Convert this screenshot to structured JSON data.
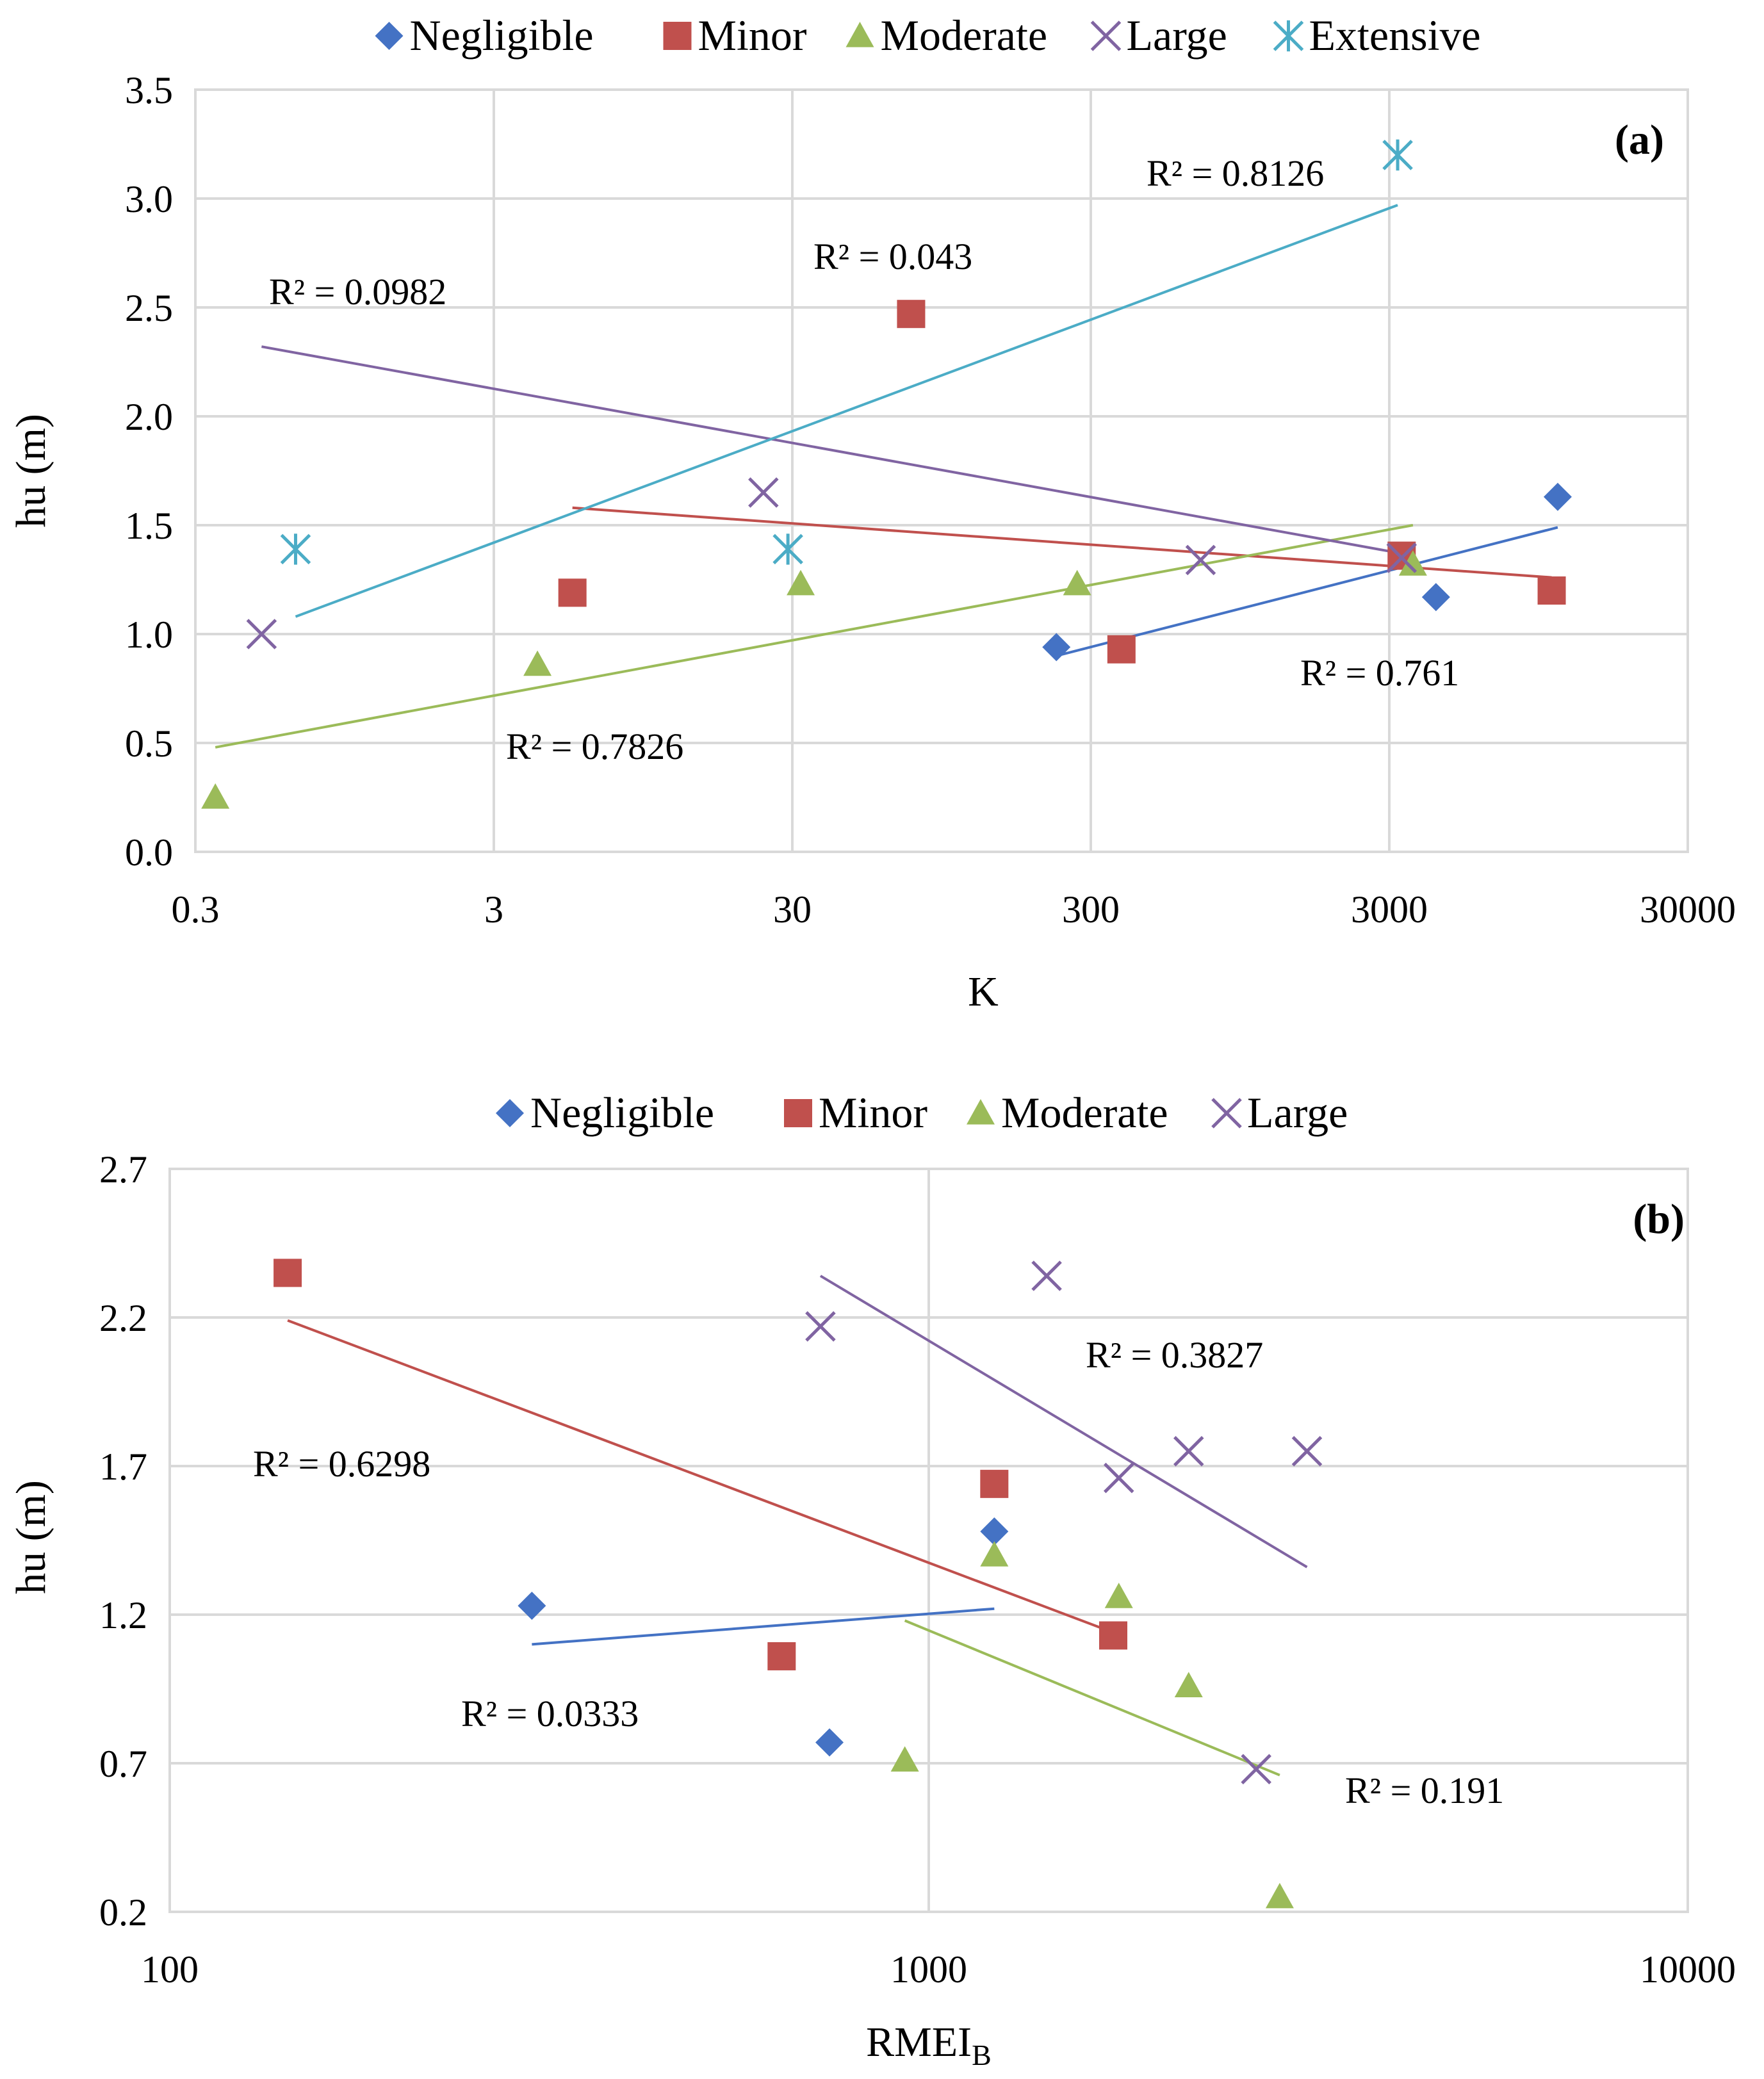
{
  "colors": {
    "Negligible": "#4472c4",
    "Minor": "#c0504d",
    "Moderate": "#9bbb59",
    "Large": "#8064a2",
    "Extensive": "#4bacc6",
    "grid": "#d9d9d9"
  },
  "chart_data": [
    {
      "type": "scatter",
      "panel_label": "(a)",
      "xlabel": "K",
      "ylabel": "hu (m)",
      "xscale": "log",
      "xlim": [
        0.3,
        30000
      ],
      "ylim": [
        0,
        3.5
      ],
      "xticks": [
        0.3,
        3,
        30,
        300,
        3000,
        30000
      ],
      "xtick_labels": [
        "0.3",
        "3",
        "30",
        "300",
        "3000",
        "30000"
      ],
      "yticks": [
        0,
        0.5,
        1,
        1.5,
        2,
        2.5,
        3,
        3.5
      ],
      "ytick_labels": [
        "0.0",
        "0.5",
        "1.0",
        "1.5",
        "2.0",
        "2.5",
        "3.0",
        "3.5"
      ],
      "legend_position": "top",
      "series": [
        {
          "name": "Negligible",
          "marker": "diamond",
          "points": [
            [
              230,
              0.94
            ],
            [
              4300,
              1.17
            ],
            [
              11000,
              1.63
            ]
          ],
          "trendline": {
            "x": [
              230,
              11000
            ],
            "y": [
              0.9,
              1.49
            ]
          },
          "r2": "R² = 0.761"
        },
        {
          "name": "Minor",
          "marker": "square",
          "points": [
            [
              5.5,
              1.19
            ],
            [
              75,
              2.47
            ],
            [
              380,
              0.93
            ],
            [
              3300,
              1.36
            ],
            [
              10500,
              1.2
            ]
          ],
          "trendline": {
            "x": [
              5.5,
              10500
            ],
            "y": [
              1.58,
              1.26
            ]
          },
          "r2": "R² = 0.043"
        },
        {
          "name": "Moderate",
          "marker": "triangle",
          "points": [
            [
              0.35,
              0.25
            ],
            [
              4.2,
              0.86
            ],
            [
              32,
              1.23
            ],
            [
              270,
              1.23
            ],
            [
              3600,
              1.32
            ]
          ],
          "trendline": {
            "x": [
              0.35,
              3600
            ],
            "y": [
              0.48,
              1.5
            ]
          },
          "r2": "R² = 0.7826"
        },
        {
          "name": "Large",
          "marker": "x",
          "points": [
            [
              0.5,
              1.0
            ],
            [
              24,
              1.65
            ],
            [
              700,
              1.34
            ],
            [
              3300,
              1.35
            ]
          ],
          "trendline": {
            "x": [
              0.5,
              3300
            ],
            "y": [
              2.32,
              1.37
            ]
          },
          "r2": "R² = 0.0982"
        },
        {
          "name": "Extensive",
          "marker": "asterisk",
          "points": [
            [
              0.65,
              1.39
            ],
            [
              29,
              1.39
            ],
            [
              3200,
              3.2
            ]
          ],
          "trendline": {
            "x": [
              0.65,
              3200
            ],
            "y": [
              1.08,
              2.97
            ]
          },
          "r2": "R² = 0.8126"
        }
      ]
    },
    {
      "type": "scatter",
      "panel_label": "(b)",
      "xlabel": "RMEI",
      "xlabel_sub": "B",
      "ylabel": "hu (m)",
      "xscale": "log",
      "xlim": [
        100,
        10000
      ],
      "ylim": [
        0.2,
        2.7
      ],
      "xticks": [
        100,
        1000,
        10000
      ],
      "xtick_labels": [
        "100",
        "1000",
        "10000"
      ],
      "yticks": [
        0.2,
        0.7,
        1.2,
        1.7,
        2.2,
        2.7
      ],
      "ytick_labels": [
        "0.2",
        "0.7",
        "1.2",
        "1.7",
        "2.2",
        "2.7"
      ],
      "legend_position": "top",
      "series": [
        {
          "name": "Negligible",
          "marker": "diamond",
          "points": [
            [
              300,
              1.23
            ],
            [
              740,
              0.77
            ],
            [
              1220,
              1.48
            ]
          ],
          "trendline": {
            "x": [
              300,
              1220
            ],
            "y": [
              1.1,
              1.22
            ]
          },
          "r2": "R² = 0.0333"
        },
        {
          "name": "Minor",
          "marker": "square",
          "points": [
            [
              143,
              2.35
            ],
            [
              640,
              1.06
            ],
            [
              1220,
              1.64
            ],
            [
              1750,
              1.13
            ]
          ],
          "trendline": {
            "x": [
              143,
              1750
            ],
            "y": [
              2.19,
              1.14
            ]
          },
          "r2": "R² = 0.6298"
        },
        {
          "name": "Moderate",
          "marker": "triangle",
          "points": [
            [
              930,
              0.71
            ],
            [
              1220,
              1.4
            ],
            [
              1780,
              1.26
            ],
            [
              2200,
              0.96
            ],
            [
              2900,
              0.25
            ]
          ],
          "trendline": {
            "x": [
              930,
              2900
            ],
            "y": [
              1.18,
              0.66
            ]
          },
          "r2": "R² = 0.191"
        },
        {
          "name": "Large",
          "marker": "x",
          "points": [
            [
              720,
              2.17
            ],
            [
              1430,
              2.34
            ],
            [
              1780,
              1.66
            ],
            [
              2200,
              1.75
            ],
            [
              2700,
              0.68
            ],
            [
              3150,
              1.75
            ]
          ],
          "trendline": {
            "x": [
              720,
              3150
            ],
            "y": [
              2.34,
              1.36
            ]
          },
          "r2": "R² = 0.3827"
        }
      ]
    }
  ]
}
